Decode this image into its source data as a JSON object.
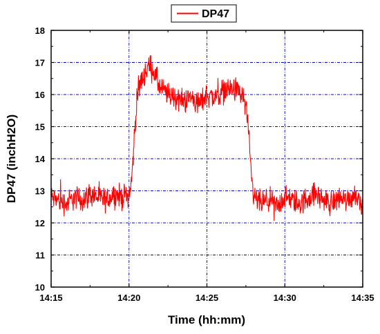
{
  "chart_data": {
    "type": "line",
    "title": "",
    "xlabel": "Time (hh:mm)",
    "ylabel": "DP47 (inchH2O)",
    "x_tick_labels": [
      "14:15",
      "14:20",
      "14:25",
      "14:30",
      "14:35"
    ],
    "y_ticks": [
      10,
      11,
      12,
      13,
      14,
      15,
      16,
      17,
      18
    ],
    "xlim": [
      "14:15",
      "14:35"
    ],
    "ylim": [
      10,
      18
    ],
    "grid": true,
    "grid_style": "dash-dot",
    "grid_color": "#0000cc",
    "legend_position": "top-center",
    "series": [
      {
        "name": "DP47",
        "color": "#ff0000",
        "x": [
          "14:15:00",
          "14:15:30",
          "14:16:00",
          "14:16:30",
          "14:17:00",
          "14:17:30",
          "14:18:00",
          "14:18:30",
          "14:19:00",
          "14:19:30",
          "14:20:00",
          "14:20:10",
          "14:20:20",
          "14:20:30",
          "14:20:45",
          "14:21:00",
          "14:21:15",
          "14:21:30",
          "14:21:45",
          "14:22:00",
          "14:22:30",
          "14:23:00",
          "14:23:30",
          "14:24:00",
          "14:24:30",
          "14:25:00",
          "14:25:30",
          "14:26:00",
          "14:26:30",
          "14:27:00",
          "14:27:20",
          "14:27:30",
          "14:27:40",
          "14:27:50",
          "14:28:00",
          "14:28:30",
          "14:29:00",
          "14:29:30",
          "14:30:00",
          "14:30:30",
          "14:31:00",
          "14:31:30",
          "14:32:00",
          "14:32:30",
          "14:33:00",
          "14:33:30",
          "14:34:00",
          "14:34:30",
          "14:35:00"
        ],
        "y": [
          12.8,
          12.7,
          12.6,
          12.8,
          12.7,
          12.9,
          12.8,
          12.7,
          12.9,
          12.8,
          12.9,
          13.3,
          14.6,
          15.9,
          16.4,
          16.6,
          16.9,
          16.8,
          16.5,
          16.2,
          16.0,
          15.9,
          15.8,
          15.9,
          15.7,
          16.0,
          15.9,
          16.1,
          16.2,
          16.1,
          15.9,
          15.7,
          14.8,
          13.5,
          12.8,
          12.6,
          12.7,
          12.5,
          12.8,
          12.7,
          12.6,
          12.8,
          12.9,
          12.7,
          12.6,
          12.8,
          12.7,
          12.9,
          12.6
        ],
        "noise_amplitude": 0.55
      }
    ]
  }
}
